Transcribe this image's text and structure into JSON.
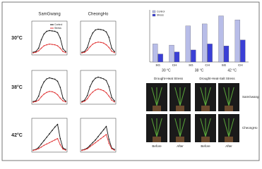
{
  "panel": {
    "columns": [
      "SamGwang",
      "CheongHo"
    ],
    "rows": [
      "30°C",
      "38°C",
      "42°C"
    ]
  },
  "chart_data": [
    {
      "type": "line",
      "ylim": [
        0,
        100
      ],
      "series": [
        {
          "name": "Control",
          "color": "#111111",
          "values": [
            8,
            10,
            20,
            45,
            62,
            70,
            72,
            71,
            70,
            66,
            50,
            18,
            10
          ]
        },
        {
          "name": "Stress",
          "color": "#e03030",
          "values": [
            6,
            8,
            12,
            20,
            27,
            30,
            32,
            31,
            30,
            27,
            20,
            10,
            7
          ]
        }
      ]
    },
    {
      "type": "line",
      "ylim": [
        0,
        100
      ],
      "series": [
        {
          "name": "Control",
          "color": "#111111",
          "values": [
            8,
            10,
            22,
            48,
            65,
            74,
            76,
            75,
            73,
            68,
            52,
            20,
            10
          ]
        },
        {
          "name": "Stress",
          "color": "#e03030",
          "values": [
            6,
            8,
            14,
            24,
            32,
            36,
            38,
            37,
            35,
            30,
            22,
            11,
            7
          ]
        }
      ]
    },
    {
      "type": "line",
      "ylim": [
        0,
        100
      ],
      "series": [
        {
          "name": "Control",
          "color": "#111111",
          "values": [
            8,
            10,
            24,
            50,
            66,
            75,
            78,
            76,
            74,
            68,
            50,
            18,
            9
          ]
        },
        {
          "name": "Stress",
          "color": "#e03030",
          "values": [
            6,
            8,
            12,
            22,
            30,
            35,
            38,
            37,
            34,
            28,
            18,
            10,
            7
          ]
        }
      ]
    },
    {
      "type": "line",
      "ylim": [
        0,
        100
      ],
      "series": [
        {
          "name": "Control",
          "color": "#111111",
          "values": [
            8,
            12,
            26,
            52,
            68,
            77,
            80,
            78,
            75,
            70,
            52,
            20,
            10
          ]
        },
        {
          "name": "Stress",
          "color": "#e03030",
          "values": [
            6,
            9,
            16,
            28,
            36,
            42,
            45,
            43,
            40,
            34,
            24,
            12,
            7
          ]
        }
      ]
    },
    {
      "type": "line",
      "ylim": [
        0,
        100
      ],
      "series": [
        {
          "name": "Control",
          "color": "#111111",
          "values": [
            6,
            8,
            14,
            24,
            34,
            44,
            54,
            64,
            74,
            82,
            40,
            12,
            8
          ]
        },
        {
          "name": "Stress",
          "color": "#e03030",
          "values": [
            5,
            7,
            10,
            15,
            20,
            24,
            28,
            32,
            36,
            40,
            22,
            9,
            6
          ]
        }
      ]
    },
    {
      "type": "line",
      "ylim": [
        0,
        100
      ],
      "series": [
        {
          "name": "Control",
          "color": "#111111",
          "values": [
            6,
            8,
            12,
            20,
            28,
            36,
            46,
            56,
            66,
            76,
            38,
            12,
            8
          ]
        },
        {
          "name": "Stress",
          "color": "#e03030",
          "values": [
            5,
            7,
            10,
            16,
            22,
            28,
            34,
            40,
            46,
            52,
            26,
            10,
            6
          ]
        }
      ]
    },
    {
      "type": "bar",
      "ylim": [
        0,
        130
      ],
      "groups": [
        "30 °C",
        "38 °C",
        "42 °C"
      ],
      "categories": [
        "SG",
        "CH",
        "SG",
        "CH",
        "SG",
        "CH"
      ],
      "series": [
        {
          "name": "Control",
          "color": "#b8bde8",
          "values": [
            45,
            42,
            90,
            95,
            115,
            105
          ]
        },
        {
          "name": "Stress",
          "color": "#3a3fd6",
          "values": [
            20,
            25,
            30,
            45,
            40,
            55
          ]
        }
      ]
    }
  ],
  "photos": {
    "headers": [
      "Drought-Heat Stress",
      "Drought-Heat-Salt Stress"
    ],
    "rows": [
      "SamGwang",
      "CheongHo"
    ],
    "captions": [
      "Before",
      "After",
      "Before",
      "After"
    ]
  }
}
